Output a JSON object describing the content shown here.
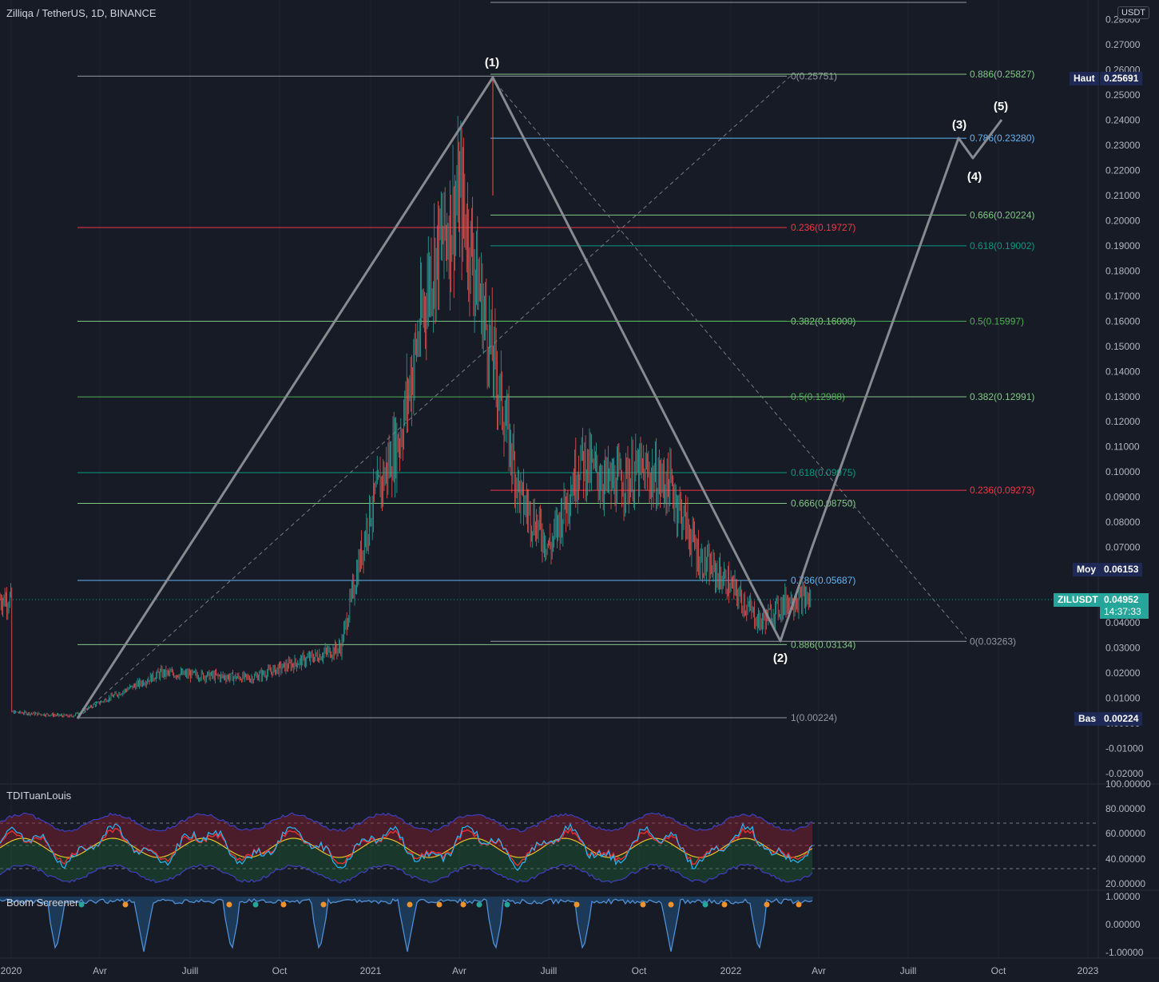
{
  "header": {
    "symbol_title": "Zilliqa / TetherUS, 1D, BINANCE",
    "currency_badge": "USDT"
  },
  "price_axis": {
    "ticks": [
      "0.28000",
      "0.27000",
      "0.26000",
      "0.25000",
      "0.24000",
      "0.23000",
      "0.22000",
      "0.21000",
      "0.20000",
      "0.19000",
      "0.18000",
      "0.17000",
      "0.16000",
      "0.15000",
      "0.14000",
      "0.13000",
      "0.12000",
      "0.11000",
      "0.10000",
      "0.09000",
      "0.08000",
      "0.07000",
      "0.06000",
      "0.05000",
      "0.04000",
      "0.03000",
      "0.02000",
      "0.01000",
      "0.00000",
      "-0.01000",
      "-0.02000"
    ],
    "high_label": "Haut",
    "high_value": "0.25691",
    "avg_label": "Moy",
    "avg_value": "0.06153",
    "low_label": "Bas",
    "low_value": "0.00224",
    "symbol_tag": "ZILUSDT",
    "last_price": "0.04952",
    "countdown": "14:37:33"
  },
  "time_axis": {
    "labels": [
      "2020",
      "Avr",
      "Juill",
      "Oct",
      "2021",
      "Avr",
      "Juill",
      "Oct",
      "2022",
      "Avr",
      "Juill",
      "Oct",
      "2023"
    ]
  },
  "waves": {
    "w1": "(1)",
    "w2": "(2)",
    "w3": "(3)",
    "w4": "(4)",
    "w5": "(5)"
  },
  "fib_retracement_1": {
    "levels": [
      {
        "text": "0(0.25751)",
        "price": 0.25751,
        "color": "#9598a1"
      },
      {
        "text": "0.236(0.19727)",
        "price": 0.19727,
        "color": "#f23645"
      },
      {
        "text": "0.382(0.16000)",
        "price": 0.16,
        "color": "#81c784"
      },
      {
        "text": "0.5(0.12988)",
        "price": 0.12988,
        "color": "#4caf50"
      },
      {
        "text": "0.618(0.09975)",
        "price": 0.09975,
        "color": "#089981"
      },
      {
        "text": "0.666(0.08750)",
        "price": 0.0875,
        "color": "#81c784"
      },
      {
        "text": "0.786(0.05687)",
        "price": 0.05687,
        "color": "#64b5f6"
      },
      {
        "text": "0.886(0.03134)",
        "price": 0.03134,
        "color": "#81c784"
      },
      {
        "text": "1(0.00224)",
        "price": 0.00224,
        "color": "#9598a1"
      }
    ]
  },
  "fib_retracement_2": {
    "levels": [
      {
        "text": "0.886(0.25827)",
        "price": 0.25827,
        "color": "#81c784"
      },
      {
        "text": "0.786(0.23280)",
        "price": 0.2328,
        "color": "#64b5f6"
      },
      {
        "text": "0.666(0.20224)",
        "price": 0.20224,
        "color": "#81c784"
      },
      {
        "text": "0.618(0.19002)",
        "price": 0.19002,
        "color": "#089981"
      },
      {
        "text": "0.5(0.15997)",
        "price": 0.15997,
        "color": "#4caf50"
      },
      {
        "text": "0.382(0.12991)",
        "price": 0.12991,
        "color": "#81c784"
      },
      {
        "text": "0.236(0.09273)",
        "price": 0.09273,
        "color": "#f23645"
      },
      {
        "text": "0(0.03263)",
        "price": 0.03263,
        "color": "#9598a1"
      }
    ]
  },
  "indicator_1": {
    "title": "TDITuanLouis",
    "ticks": [
      "100.00000",
      "80.00000",
      "60.00000",
      "40.00000",
      "20.00000"
    ]
  },
  "indicator_2": {
    "title": "Boom Screener",
    "ticks": [
      "1.00000",
      "0.00000",
      "-1.00000"
    ]
  },
  "chart_data": {
    "type": "candlestick",
    "symbol": "ZILUSDT",
    "interval": "1D",
    "exchange": "BINANCE",
    "ylim": [
      -0.02,
      0.28
    ],
    "approx_close_path": [
      {
        "date": "2020-01",
        "price": 0.0045
      },
      {
        "date": "2020-03",
        "price": 0.0028
      },
      {
        "date": "2020-06",
        "price": 0.02
      },
      {
        "date": "2020-09",
        "price": 0.018
      },
      {
        "date": "2020-12",
        "price": 0.03
      },
      {
        "date": "2021-01",
        "price": 0.085
      },
      {
        "date": "2021-02",
        "price": 0.115
      },
      {
        "date": "2021-03",
        "price": 0.18
      },
      {
        "date": "2021-04",
        "price": 0.21
      },
      {
        "date": "2021-05",
        "price": 0.15
      },
      {
        "date": "2021-06",
        "price": 0.09
      },
      {
        "date": "2021-07",
        "price": 0.07
      },
      {
        "date": "2021-08",
        "price": 0.105
      },
      {
        "date": "2021-09",
        "price": 0.095
      },
      {
        "date": "2021-10",
        "price": 0.1
      },
      {
        "date": "2021-11",
        "price": 0.095
      },
      {
        "date": "2021-12",
        "price": 0.065
      },
      {
        "date": "2022-01",
        "price": 0.055
      },
      {
        "date": "2022-02",
        "price": 0.04
      },
      {
        "date": "2022-03",
        "price": 0.04952
      }
    ]
  }
}
